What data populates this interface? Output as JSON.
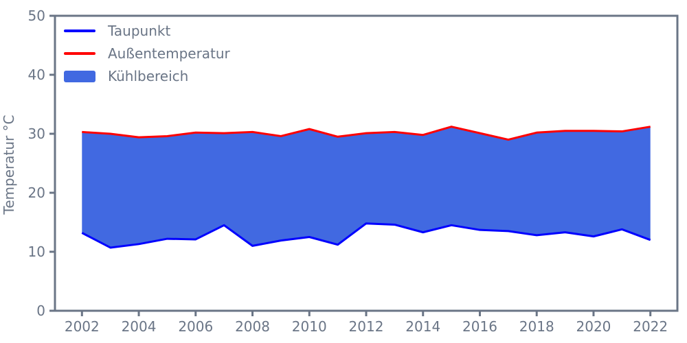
{
  "chart_data": {
    "type": "area",
    "title": "",
    "xlabel": "",
    "ylabel": "Temperatur °C",
    "x": [
      2002,
      2003,
      2004,
      2005,
      2006,
      2007,
      2008,
      2009,
      2010,
      2011,
      2012,
      2013,
      2014,
      2015,
      2016,
      2017,
      2018,
      2019,
      2020,
      2021,
      2022
    ],
    "series": [
      {
        "name": "Taupunkt",
        "color": "#0000ff",
        "values": [
          13.2,
          10.7,
          11.3,
          12.2,
          12.1,
          14.5,
          11.0,
          11.9,
          12.5,
          11.2,
          14.8,
          14.6,
          13.3,
          14.5,
          13.7,
          13.5,
          12.8,
          13.3,
          12.6,
          13.8,
          12.0
        ]
      },
      {
        "name": "Außentemperatur",
        "color": "#ff0000",
        "values": [
          30.3,
          30.0,
          29.4,
          29.6,
          30.2,
          30.1,
          30.3,
          29.6,
          30.8,
          29.5,
          30.1,
          30.3,
          29.8,
          31.2,
          30.1,
          29.0,
          30.2,
          30.5,
          30.5,
          30.4,
          31.2
        ]
      }
    ],
    "fill_between": {
      "name": "Kühlbereich",
      "color": "#4169e1",
      "lower": "Taupunkt",
      "upper": "Außentemperatur"
    },
    "ylim": [
      0,
      50
    ],
    "xlim": [
      2001.05,
      2022.95
    ],
    "yticks": [
      0,
      10,
      20,
      30,
      40,
      50
    ],
    "xticks": [
      2002,
      2004,
      2006,
      2008,
      2010,
      2012,
      2014,
      2016,
      2018,
      2020,
      2022
    ],
    "grid": false,
    "legend": {
      "position": "upper-left",
      "entries": [
        "Taupunkt",
        "Außentemperatur",
        "Kühlbereich"
      ]
    }
  },
  "style": {
    "axis_color": "#6a7586",
    "background": "#ffffff"
  }
}
